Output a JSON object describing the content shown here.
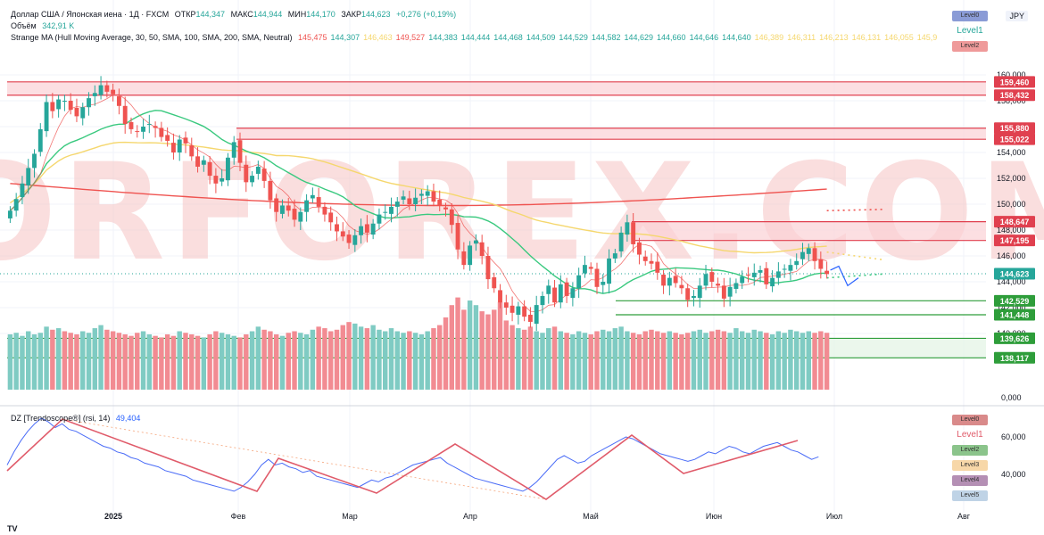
{
  "header": {
    "symbol_line": "Доллар США / Японская иена · 1Д · FXCM",
    "open_label": "ОТКР",
    "open": "144,347",
    "high_label": "МАКС",
    "high": "144,944",
    "low_label": "МИН",
    "low": "144,170",
    "close_label": "ЗАКР",
    "close": "144,623",
    "change": "+0,276 (+0,19%)",
    "volume_label": "Объём",
    "volume": "342,91 K",
    "indicator_name": "Strange MA (Hull Moving Average, 30, 50, SMA, 100, SMA, 200, SMA, Neutral)",
    "indicator_values": [
      {
        "v": "145,475",
        "c": "#ef5350"
      },
      {
        "v": "144,307",
        "c": "#26a69a"
      },
      {
        "v": "146,463",
        "c": "#f5d76e"
      },
      {
        "v": "149,527",
        "c": "#ef5350"
      },
      {
        "v": "144,383",
        "c": "#26a69a"
      },
      {
        "v": "144,444",
        "c": "#26a69a"
      },
      {
        "v": "144,468",
        "c": "#26a69a"
      },
      {
        "v": "144,509",
        "c": "#26a69a"
      },
      {
        "v": "144,529",
        "c": "#26a69a"
      },
      {
        "v": "144,582",
        "c": "#26a69a"
      },
      {
        "v": "144,629",
        "c": "#26a69a"
      },
      {
        "v": "144,660",
        "c": "#26a69a"
      },
      {
        "v": "144,646",
        "c": "#26a69a"
      },
      {
        "v": "144,640",
        "c": "#26a69a"
      },
      {
        "v": "146,389",
        "c": "#f5d76e"
      },
      {
        "v": "146,311",
        "c": "#f5d76e"
      },
      {
        "v": "146,213",
        "c": "#f5d76e"
      },
      {
        "v": "146,131",
        "c": "#f5d76e"
      },
      {
        "v": "146,055",
        "c": "#f5d76e"
      },
      {
        "v": "145,9",
        "c": "#f5d76e"
      }
    ]
  },
  "currency": "JPY",
  "watermark_text": "TORFOREX.COM",
  "tv_logo": "TV",
  "main_legend": [
    {
      "label": "Level0",
      "bg": "#8a9bd6",
      "fg": "#333"
    },
    {
      "label": "Level1",
      "bg": "#ffffff",
      "fg": "#26a69a"
    },
    {
      "label": "Level2",
      "bg": "#ef9a9a",
      "fg": "#333"
    }
  ],
  "osc_legend": [
    {
      "label": "Level0",
      "bg": "#d98a8a",
      "fg": "#333"
    },
    {
      "label": "Level1",
      "bg": "#ffffff",
      "fg": "#e05b6a"
    },
    {
      "label": "Level2",
      "bg": "#8bc48b",
      "fg": "#333"
    },
    {
      "label": "Level3",
      "bg": "#f7d7a8",
      "fg": "#333"
    },
    {
      "label": "Level4",
      "bg": "#b48fb4",
      "fg": "#333"
    },
    {
      "label": "Level5",
      "bg": "#bfd3e6",
      "fg": "#333"
    }
  ],
  "price_axis": [
    "160,000",
    "158,000",
    "156,000",
    "154,000",
    "152,000",
    "150,000",
    "148,000",
    "146,000",
    "144,000",
    "142,000",
    "140,000"
  ],
  "volume_zero_label": "0,000",
  "level_labels": [
    {
      "text": "159,460",
      "c": "#e0404f"
    },
    {
      "text": "158,432",
      "c": "#e0404f"
    },
    {
      "text": "155,880",
      "c": "#e0404f"
    },
    {
      "text": "155,022",
      "c": "#e0404f"
    },
    {
      "text": "148,647",
      "c": "#e0404f"
    },
    {
      "text": "147,195",
      "c": "#e0404f"
    },
    {
      "text": "144,623",
      "c": "#26a69a"
    },
    {
      "text": "142,529",
      "c": "#2e9d3a"
    },
    {
      "text": "141,448",
      "c": "#2e9d3a"
    },
    {
      "text": "139,626",
      "c": "#2e9d3a"
    },
    {
      "text": "138,117",
      "c": "#2e9d3a"
    }
  ],
  "oscillator": {
    "title": "DZ [Trendoscope®] (rsi, 14)",
    "value": "49,404",
    "axis": [
      "60,000",
      "40,000"
    ]
  },
  "time_axis": [
    "2025",
    "Фев",
    "Мар",
    "Апр",
    "Май",
    "Июн",
    "Июл",
    "Авг"
  ],
  "chart_data": {
    "type": "candlestick",
    "close": [
      149.5,
      150.4,
      151.6,
      152.8,
      153.9,
      155.8,
      157.9,
      157.2,
      158.1,
      158.0,
      157.3,
      156.8,
      157.5,
      158.2,
      158.6,
      159.2,
      158.7,
      158.5,
      157.6,
      156.2,
      155.8,
      155.6,
      156.0,
      156.2,
      155.9,
      155.2,
      154.9,
      154.0,
      155.0,
      154.7,
      153.7,
      152.9,
      153.4,
      152.2,
      151.6,
      152.0,
      153.6,
      154.8,
      153.2,
      151.7,
      152.2,
      152.9,
      151.8,
      150.3,
      149.4,
      149.9,
      149.5,
      148.8,
      149.4,
      150.3,
      150.7,
      149.8,
      149.2,
      148.6,
      147.9,
      147.5,
      147.0,
      147.6,
      148.3,
      147.8,
      148.5,
      149.2,
      149.4,
      149.8,
      150.2,
      150.6,
      150.0,
      150.5,
      150.8,
      151.0,
      150.2,
      149.9,
      149.6,
      148.4,
      146.5,
      145.3,
      146.8,
      147.2,
      146.0,
      144.2,
      143.5,
      142.4,
      142.0,
      141.6,
      142.1,
      141.3,
      140.9,
      142.2,
      142.9,
      143.7,
      142.4,
      143.8,
      142.9,
      143.5,
      144.5,
      145.3,
      145.0,
      143.6,
      144.0,
      145.8,
      146.2,
      147.8,
      148.6,
      146.9,
      146.1,
      145.6,
      145.4,
      144.7,
      143.7,
      144.3,
      143.9,
      143.5,
      142.6,
      142.9,
      143.7,
      144.6,
      144.0,
      143.7,
      142.7,
      143.6,
      143.9,
      144.4,
      144.5,
      144.7,
      144.9,
      143.8,
      144.3,
      144.8,
      145.0,
      145.3,
      145.6,
      146.3,
      146.6,
      145.6,
      145.0,
      144.6
    ],
    "volume": [
      36,
      37,
      35,
      38,
      36,
      37,
      41,
      39,
      40,
      38,
      37,
      36,
      38,
      37,
      40,
      42,
      39,
      38,
      37,
      36,
      35,
      37,
      38,
      36,
      35,
      34,
      36,
      35,
      38,
      37,
      36,
      35,
      34,
      36,
      38,
      37,
      36,
      35,
      34,
      36,
      38,
      41,
      39,
      38,
      36,
      35,
      37,
      38,
      37,
      36,
      39,
      41,
      40,
      38,
      39,
      42,
      44,
      43,
      41,
      40,
      42,
      39,
      38,
      40,
      38,
      37,
      38,
      37,
      36,
      38,
      40,
      42,
      47,
      55,
      60,
      52,
      58,
      55,
      51,
      49,
      52,
      57,
      45,
      42,
      40,
      39,
      41,
      38,
      37,
      40,
      41,
      38,
      37,
      36,
      38,
      37,
      36,
      38,
      39,
      38,
      40,
      41,
      38,
      37,
      36,
      38,
      39,
      38,
      37,
      38,
      37,
      36,
      37,
      38,
      39,
      37,
      38,
      39,
      38,
      37,
      40,
      38,
      37,
      39,
      38,
      37,
      36,
      38,
      37,
      39,
      38,
      37,
      38,
      37,
      38,
      37
    ],
    "series": [
      {
        "name": "Level0",
        "values": [
          159.46,
          158.432,
          155.88,
          155.022,
          148.647,
          147.195,
          142.529,
          141.448,
          139.626,
          138.117
        ]
      },
      {
        "name": "Level1",
        "values": [
          144.623
        ]
      }
    ],
    "rsi": [
      45,
      52,
      58,
      63,
      67,
      70,
      68,
      65,
      67,
      64,
      63,
      61,
      59,
      57,
      55,
      54,
      52,
      51,
      49,
      48,
      46,
      45,
      44,
      42,
      41,
      40,
      39,
      37,
      36,
      35,
      34,
      33,
      32,
      31,
      33,
      36,
      40,
      45,
      48,
      45,
      46,
      44,
      43,
      41,
      42,
      39,
      38,
      37,
      36,
      35,
      34,
      33,
      35,
      37,
      36,
      38,
      39,
      41,
      43,
      45,
      46,
      47,
      48,
      49,
      46,
      44,
      42,
      40,
      38,
      37,
      36,
      35,
      34,
      33,
      32,
      31,
      33,
      36,
      40,
      44,
      48,
      50,
      48,
      46,
      47,
      50,
      52,
      54,
      56,
      58,
      60,
      59,
      57,
      55,
      53,
      51,
      50,
      49,
      48,
      47,
      48,
      50,
      52,
      51,
      53,
      55,
      54,
      52,
      51,
      53,
      55,
      56,
      57,
      55,
      53,
      52,
      50,
      48,
      49.4
    ]
  }
}
